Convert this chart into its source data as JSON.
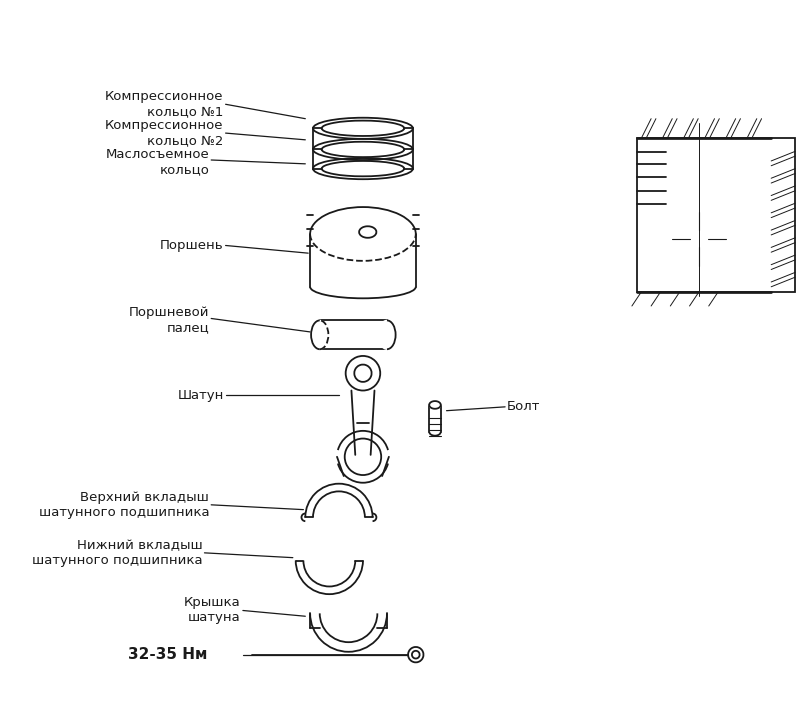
{
  "bg_color": "#ffffff",
  "line_color": "#1a1a1a",
  "font_color": "#1a1a1a",
  "font_size_label": 9.5,
  "font_size_torque": 11,
  "labels": {
    "ring1": "Компрессионное\nкольцо №1",
    "ring2": "Компрессионное\nкольцо №2",
    "ring3": "Маслосъемное\nкольцо",
    "piston": "Поршень",
    "pin": "Поршневой\nпалец",
    "rod": "Шатун",
    "bolt": "Болт",
    "upper_bearing": "Верхний вкладыш\nшатунного подшипника",
    "lower_bearing": "Нижний вкладыш\nшатунного подшипника",
    "cap": "Крышка\nшатуна",
    "torque": "32-35 Нм"
  },
  "figsize": [
    8.0,
    7.09
  ],
  "dpi": 100
}
